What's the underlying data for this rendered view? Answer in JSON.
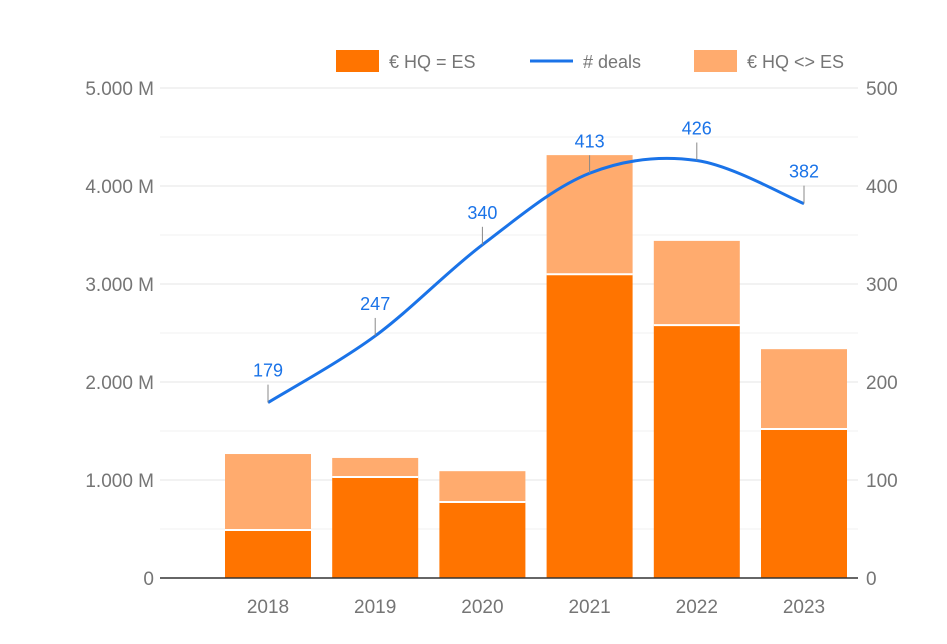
{
  "chart_data": {
    "type": "bar",
    "stacked": true,
    "categories": [
      "2018",
      "2019",
      "2020",
      "2021",
      "2022",
      "2023"
    ],
    "series": [
      {
        "name": "€ HQ = ES",
        "type": "bar",
        "axis": "left",
        "color": "#ff7400",
        "values": [
          490,
          1030,
          775,
          3100,
          2580,
          1520
        ]
      },
      {
        "name": "€ HQ <> ES",
        "type": "bar",
        "axis": "left",
        "color": "#ffab6e",
        "values": [
          775,
          195,
          315,
          1215,
          860,
          815
        ]
      },
      {
        "name": "# deals",
        "type": "line",
        "axis": "right",
        "color": "#1a73e8",
        "smooth": true,
        "values": [
          179,
          247,
          340,
          413,
          426,
          382
        ],
        "data_labels": [
          "179",
          "247",
          "340",
          "413",
          "426",
          "382"
        ]
      }
    ],
    "y_left": {
      "unit": "M",
      "ylim": [
        0,
        5000
      ],
      "tick_labels": [
        "0",
        "1.000 M",
        "2.000 M",
        "3.000 M",
        "4.000 M",
        "5.000 M"
      ]
    },
    "y_right": {
      "ylim": [
        0,
        500
      ],
      "tick_labels": [
        "0",
        "100",
        "200",
        "300",
        "400",
        "500"
      ]
    },
    "legend": {
      "position": "top-right",
      "order": [
        "€ HQ = ES",
        "# deals",
        "€ HQ <> ES"
      ]
    },
    "grid": true
  }
}
